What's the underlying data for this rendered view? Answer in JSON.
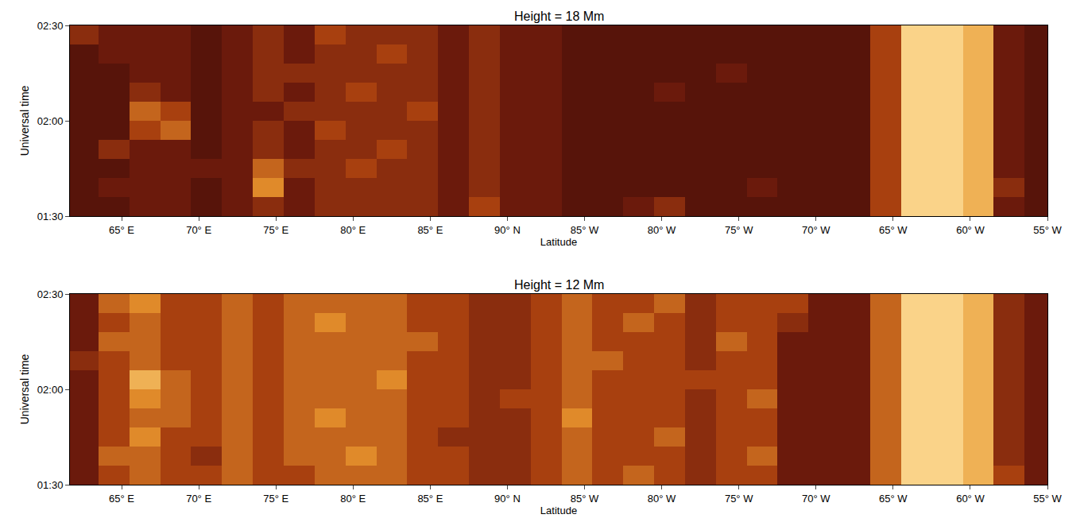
{
  "chart_data": [
    {
      "type": "heatmap",
      "title": "Height = 18 Mm",
      "x_label": "Latitude",
      "y_label": "Universal time",
      "xlim": [
        61.65,
        125
      ],
      "ylim": [
        90,
        150
      ],
      "xticks": [
        {
          "value": 65,
          "label": "65° E"
        },
        {
          "value": 70,
          "label": "70° E"
        },
        {
          "value": 75,
          "label": "75° E"
        },
        {
          "value": 80,
          "label": "80° E"
        },
        {
          "value": 85,
          "label": "85° E"
        },
        {
          "value": 90,
          "label": "90° N"
        },
        {
          "value": 95,
          "label": "85° W"
        },
        {
          "value": 100,
          "label": "80° W"
        },
        {
          "value": 105,
          "label": "75° W"
        },
        {
          "value": 110,
          "label": "70° W"
        },
        {
          "value": 115,
          "label": "65° W"
        },
        {
          "value": 120,
          "label": "60° W"
        },
        {
          "value": 125,
          "label": "55° W"
        }
      ],
      "yticks": [
        {
          "value": 90,
          "label": "01:30"
        },
        {
          "value": 120,
          "label": "02:00"
        },
        {
          "value": 150,
          "label": "02:30"
        }
      ],
      "zlim": [
        0,
        10
      ],
      "x": [
        62.5,
        64.5,
        66.5,
        68.5,
        70.5,
        72.5,
        74.5,
        76.5,
        78.5,
        80.5,
        82.5,
        84.5,
        86.5,
        88.5,
        90.5,
        92.5,
        94.5,
        96.5,
        98.5,
        100.5,
        102.5,
        104.5,
        106.5,
        108.5,
        110.5,
        112.5,
        114.5,
        116.5,
        118.5,
        120.5,
        122.5,
        124.5
      ],
      "y": [
        93,
        99,
        105,
        111,
        117,
        123,
        129,
        135,
        141,
        147
      ],
      "z": [
        [
          2,
          2,
          3,
          3,
          2,
          3,
          4,
          3,
          4,
          4,
          4,
          4,
          3,
          5,
          3,
          3,
          2,
          2,
          3,
          4,
          2,
          2,
          2,
          2,
          2,
          2,
          5,
          9,
          9,
          8,
          3,
          2
        ],
        [
          2,
          3,
          3,
          3,
          2,
          3,
          7,
          3,
          4,
          4,
          4,
          4,
          3,
          4,
          3,
          3,
          2,
          2,
          2,
          2,
          2,
          2,
          3,
          2,
          2,
          2,
          5,
          9,
          9,
          8,
          4,
          2
        ],
        [
          2,
          2,
          3,
          3,
          3,
          3,
          6,
          4,
          4,
          5,
          4,
          4,
          3,
          4,
          3,
          3,
          2,
          2,
          2,
          2,
          2,
          2,
          2,
          2,
          2,
          2,
          5,
          9,
          9,
          8,
          3,
          2
        ],
        [
          2,
          4,
          3,
          3,
          2,
          3,
          4,
          3,
          4,
          4,
          5,
          4,
          3,
          4,
          3,
          3,
          2,
          2,
          2,
          2,
          2,
          2,
          2,
          2,
          2,
          2,
          5,
          9,
          9,
          8,
          3,
          2
        ],
        [
          2,
          2,
          5,
          6,
          2,
          3,
          4,
          3,
          5,
          4,
          4,
          4,
          3,
          4,
          3,
          3,
          2,
          2,
          2,
          2,
          2,
          2,
          2,
          2,
          2,
          2,
          5,
          9,
          9,
          8,
          3,
          2
        ],
        [
          2,
          2,
          6,
          5,
          2,
          3,
          3,
          4,
          4,
          4,
          4,
          5,
          3,
          4,
          3,
          3,
          2,
          2,
          2,
          2,
          2,
          2,
          2,
          2,
          2,
          2,
          5,
          9,
          9,
          8,
          3,
          2
        ],
        [
          2,
          2,
          4,
          3,
          2,
          3,
          4,
          3,
          4,
          5,
          4,
          4,
          3,
          4,
          3,
          3,
          2,
          2,
          2,
          3,
          2,
          2,
          2,
          2,
          2,
          2,
          5,
          9,
          9,
          8,
          3,
          2
        ],
        [
          2,
          2,
          3,
          3,
          2,
          3,
          4,
          4,
          4,
          4,
          4,
          4,
          3,
          4,
          3,
          3,
          2,
          2,
          2,
          2,
          2,
          3,
          2,
          2,
          2,
          2,
          5,
          9,
          9,
          8,
          3,
          2
        ],
        [
          2,
          3,
          3,
          3,
          2,
          3,
          4,
          3,
          4,
          4,
          5,
          4,
          3,
          4,
          3,
          3,
          2,
          2,
          2,
          2,
          2,
          2,
          2,
          2,
          2,
          2,
          5,
          9,
          9,
          8,
          3,
          2
        ],
        [
          4,
          3,
          3,
          3,
          2,
          3,
          4,
          3,
          5,
          4,
          4,
          4,
          3,
          4,
          3,
          3,
          2,
          2,
          2,
          2,
          2,
          2,
          2,
          2,
          2,
          2,
          5,
          9,
          9,
          8,
          3,
          2
        ]
      ]
    },
    {
      "type": "heatmap",
      "title": "Height = 12 Mm",
      "x_label": "Latitude",
      "y_label": "Universal time",
      "xlim": [
        61.65,
        125
      ],
      "ylim": [
        90,
        150
      ],
      "xticks": [
        {
          "value": 65,
          "label": "65° E"
        },
        {
          "value": 70,
          "label": "70° E"
        },
        {
          "value": 75,
          "label": "75° E"
        },
        {
          "value": 80,
          "label": "80° E"
        },
        {
          "value": 85,
          "label": "85° E"
        },
        {
          "value": 90,
          "label": "90° N"
        },
        {
          "value": 95,
          "label": "85° W"
        },
        {
          "value": 100,
          "label": "80° W"
        },
        {
          "value": 105,
          "label": "75° W"
        },
        {
          "value": 110,
          "label": "70° W"
        },
        {
          "value": 115,
          "label": "65° W"
        },
        {
          "value": 120,
          "label": "60° W"
        },
        {
          "value": 125,
          "label": "55° W"
        }
      ],
      "yticks": [
        {
          "value": 90,
          "label": "01:30"
        },
        {
          "value": 120,
          "label": "02:00"
        },
        {
          "value": 150,
          "label": "02:30"
        }
      ],
      "zlim": [
        0,
        10
      ],
      "x": [
        62.5,
        64.5,
        66.5,
        68.5,
        70.5,
        72.5,
        74.5,
        76.5,
        78.5,
        80.5,
        82.5,
        84.5,
        86.5,
        88.5,
        90.5,
        92.5,
        94.5,
        96.5,
        98.5,
        100.5,
        102.5,
        104.5,
        106.5,
        108.5,
        110.5,
        112.5,
        114.5,
        116.5,
        118.5,
        120.5,
        122.5,
        124.5
      ],
      "y": [
        93,
        99,
        105,
        111,
        117,
        123,
        129,
        135,
        141,
        147
      ],
      "z": [
        [
          3,
          5,
          6,
          5,
          5,
          6,
          5,
          5,
          6,
          6,
          6,
          5,
          5,
          4,
          4,
          5,
          6,
          5,
          6,
          5,
          4,
          5,
          5,
          3,
          3,
          3,
          6,
          9,
          9,
          8,
          5,
          3
        ],
        [
          3,
          6,
          6,
          5,
          4,
          6,
          5,
          6,
          6,
          7,
          6,
          5,
          5,
          4,
          4,
          5,
          6,
          5,
          5,
          5,
          4,
          5,
          6,
          3,
          3,
          3,
          6,
          9,
          9,
          8,
          4,
          3
        ],
        [
          3,
          5,
          7,
          5,
          5,
          6,
          5,
          6,
          6,
          6,
          6,
          5,
          4,
          4,
          4,
          5,
          6,
          5,
          5,
          6,
          4,
          5,
          5,
          3,
          3,
          3,
          6,
          9,
          9,
          8,
          4,
          3
        ],
        [
          3,
          5,
          6,
          6,
          5,
          6,
          5,
          6,
          7,
          6,
          6,
          5,
          5,
          4,
          4,
          5,
          7,
          5,
          5,
          5,
          4,
          5,
          5,
          3,
          3,
          3,
          6,
          9,
          9,
          8,
          4,
          3
        ],
        [
          3,
          5,
          7,
          6,
          5,
          6,
          5,
          6,
          6,
          6,
          6,
          5,
          5,
          4,
          5,
          5,
          6,
          5,
          5,
          5,
          4,
          5,
          6,
          3,
          3,
          3,
          6,
          9,
          9,
          8,
          4,
          3
        ],
        [
          3,
          5,
          8,
          6,
          5,
          6,
          5,
          6,
          6,
          6,
          7,
          5,
          5,
          4,
          4,
          5,
          6,
          5,
          5,
          5,
          5,
          5,
          5,
          3,
          3,
          3,
          6,
          9,
          9,
          8,
          4,
          3
        ],
        [
          4,
          5,
          6,
          5,
          5,
          6,
          5,
          6,
          6,
          6,
          6,
          5,
          5,
          4,
          4,
          5,
          6,
          6,
          5,
          5,
          4,
          5,
          5,
          3,
          3,
          3,
          6,
          9,
          9,
          8,
          4,
          3
        ],
        [
          3,
          6,
          6,
          5,
          5,
          6,
          5,
          6,
          6,
          6,
          6,
          6,
          5,
          4,
          4,
          5,
          6,
          5,
          5,
          5,
          4,
          6,
          5,
          3,
          3,
          3,
          6,
          9,
          9,
          8,
          4,
          3
        ],
        [
          3,
          5,
          6,
          5,
          5,
          6,
          5,
          6,
          7,
          6,
          6,
          5,
          5,
          4,
          4,
          5,
          6,
          5,
          6,
          5,
          4,
          5,
          5,
          4,
          3,
          3,
          6,
          9,
          9,
          8,
          4,
          3
        ],
        [
          3,
          6,
          7,
          5,
          5,
          6,
          5,
          6,
          6,
          6,
          6,
          5,
          5,
          4,
          4,
          5,
          6,
          5,
          5,
          6,
          4,
          5,
          5,
          5,
          3,
          3,
          6,
          9,
          9,
          8,
          4,
          3
        ]
      ]
    }
  ]
}
